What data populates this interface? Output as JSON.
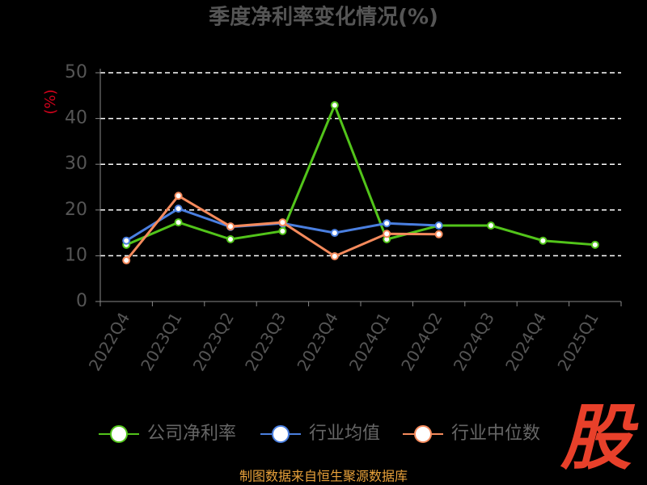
{
  "chart_data": {
    "type": "line",
    "title": "季度净利率变化情况(%)",
    "y_label": "(%)",
    "categories": [
      "2022Q4",
      "2023Q1",
      "2023Q2",
      "2023Q3",
      "2023Q4",
      "2024Q1",
      "2024Q2",
      "2024Q3",
      "2024Q4",
      "2025Q1"
    ],
    "series": [
      {
        "name": "公司净利率",
        "color": "#52c41a",
        "values": [
          12.4,
          17.3,
          13.6,
          15.4,
          42.9,
          13.6,
          16.6,
          16.6,
          13.3,
          12.4
        ]
      },
      {
        "name": "行业均值",
        "color": "#4a7fe0",
        "values": [
          13.3,
          20.3,
          16.3,
          17.1,
          15.0,
          17.1,
          16.6,
          null,
          null,
          null
        ]
      },
      {
        "name": "行业中位数",
        "color": "#f58a5c",
        "values": [
          9.0,
          23.1,
          16.4,
          17.3,
          9.9,
          14.8,
          14.7,
          null,
          null,
          null
        ]
      }
    ],
    "ylim": [
      0,
      50
    ],
    "yticks": [
      0,
      10,
      20,
      30,
      40,
      50
    ],
    "grid": true,
    "source": "制图数据来自恒生聚源数据库",
    "logo": "股"
  }
}
